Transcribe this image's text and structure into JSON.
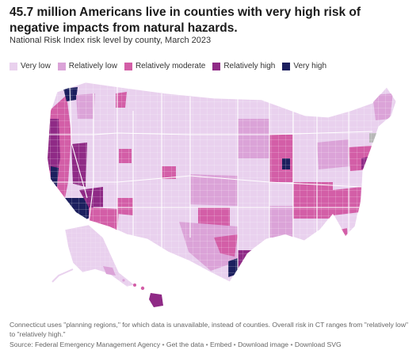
{
  "header": {
    "title": "45.7 million Americans live in counties with very high risk of negative impacts from natural hazards.",
    "subtitle": "National Risk Index risk level by county, March 2023"
  },
  "legend": {
    "items": [
      {
        "label": "Very low",
        "color": "#e9d1ee"
      },
      {
        "label": "Relatively low",
        "color": "#dba3d8"
      },
      {
        "label": "Relatively moderate",
        "color": "#d35ea7"
      },
      {
        "label": "Relatively high",
        "color": "#8f2a86"
      },
      {
        "label": "Very high",
        "color": "#1c1f5e"
      }
    ]
  },
  "map": {
    "colors": {
      "very_low": "#e9d1ee",
      "relatively_low": "#dba3d8",
      "relatively_moderate": "#d35ea7",
      "relatively_high": "#8f2a86",
      "very_high": "#1c1f5e",
      "unavailable": "#b8b8b8"
    }
  },
  "footer": {
    "note": "Connecticut uses \"planning regions,\" for which data is unavailable, instead of counties. Overall risk in CT ranges from \"relatively low\" to \"relatively high.\"",
    "source_prefix": "Source: Federal Emergency Management Agency",
    "get_data": "Get the data",
    "embed": "Embed",
    "download_image": "Download image",
    "download_svg": "Download SVG"
  }
}
